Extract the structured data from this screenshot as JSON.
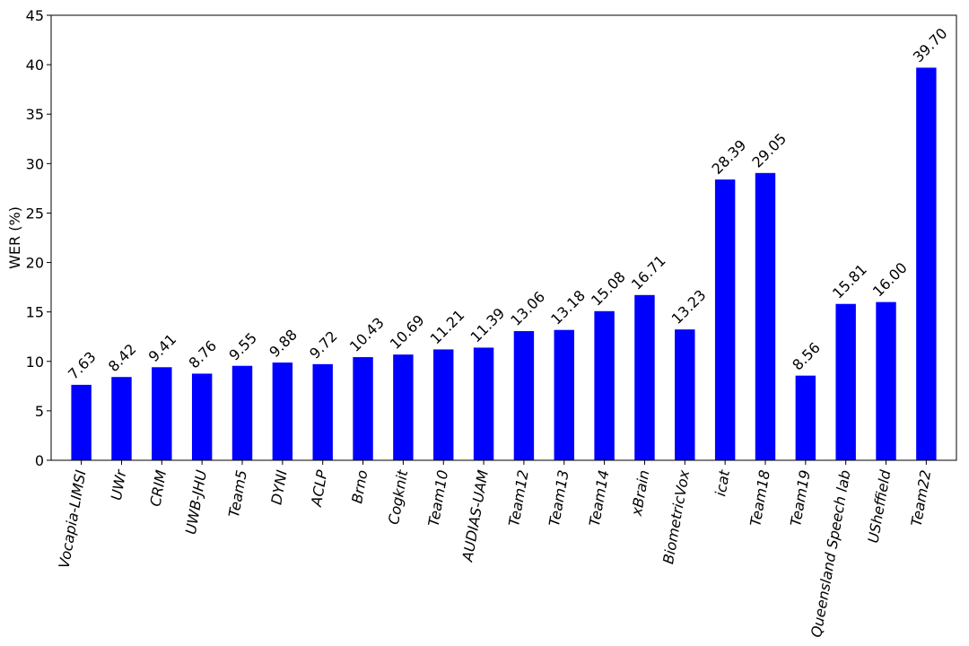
{
  "chart_data": {
    "type": "bar",
    "title": "",
    "xlabel": "",
    "ylabel": "WER (%)",
    "ylim": [
      0,
      45
    ],
    "yticks": [
      0,
      5,
      10,
      15,
      20,
      25,
      30,
      35,
      40,
      45
    ],
    "grid": false,
    "bar_color": "#0000ff",
    "categories": [
      "Vocapia-LIMSI",
      "UWr",
      "CRIM",
      "UWB-JHU",
      "Team5",
      "DYNI",
      "ACLP",
      "Brno",
      "Cogknit",
      "Team10",
      "AUDIAS-UAM",
      "Team12",
      "Team13",
      "Team14",
      "xBrain",
      "BiometricVox",
      "icat",
      "Team18",
      "Team19",
      "Queensland Speech lab",
      "USheffield",
      "Team22"
    ],
    "values": [
      7.63,
      8.42,
      9.41,
      8.76,
      9.55,
      9.88,
      9.72,
      10.43,
      10.69,
      11.21,
      11.39,
      13.06,
      13.18,
      15.08,
      16.71,
      13.23,
      28.39,
      29.05,
      8.56,
      15.81,
      16.0,
      39.7
    ],
    "value_labels": [
      "7.63",
      "8.42",
      "9.41",
      "8.76",
      "9.55",
      "9.88",
      "9.72",
      "10.43",
      "10.69",
      "11.21",
      "11.39",
      "13.06",
      "13.18",
      "15.08",
      "16.71",
      "13.23",
      "28.39",
      "29.05",
      "8.56",
      "15.81",
      "16.00",
      "39.70"
    ]
  }
}
